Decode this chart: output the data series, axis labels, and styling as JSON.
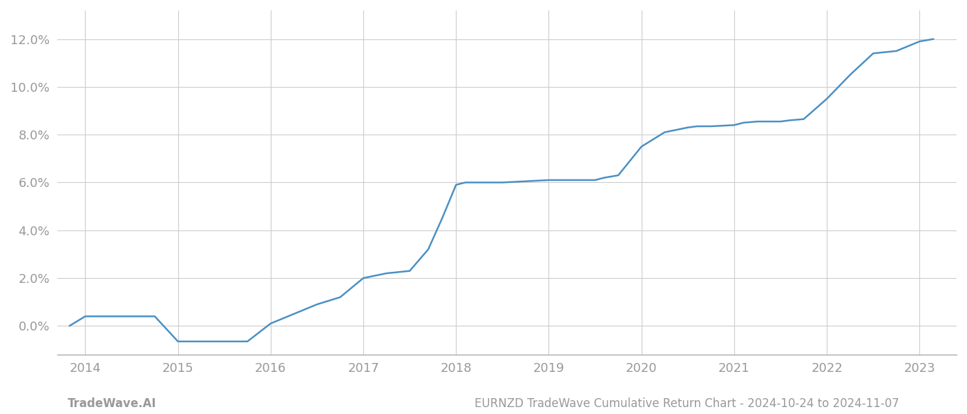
{
  "x_values": [
    2013.83,
    2014.0,
    2014.75,
    2015.0,
    2015.25,
    2015.5,
    2015.75,
    2016.0,
    2016.25,
    2016.5,
    2016.75,
    2017.0,
    2017.25,
    2017.5,
    2017.7,
    2017.85,
    2018.0,
    2018.1,
    2018.3,
    2018.5,
    2018.75,
    2019.0,
    2019.25,
    2019.5,
    2019.6,
    2019.75,
    2020.0,
    2020.25,
    2020.5,
    2020.6,
    2020.75,
    2021.0,
    2021.1,
    2021.25,
    2021.5,
    2021.6,
    2021.75,
    2022.0,
    2022.25,
    2022.5,
    2022.75,
    2023.0,
    2023.15
  ],
  "y_values": [
    0.0,
    0.4,
    0.4,
    -0.65,
    -0.65,
    -0.65,
    -0.65,
    0.1,
    0.5,
    0.9,
    1.2,
    2.0,
    2.2,
    2.3,
    3.2,
    4.5,
    5.9,
    6.0,
    6.0,
    6.0,
    6.05,
    6.1,
    6.1,
    6.1,
    6.2,
    6.3,
    7.5,
    8.1,
    8.3,
    8.35,
    8.35,
    8.4,
    8.5,
    8.55,
    8.55,
    8.6,
    8.65,
    9.5,
    10.5,
    11.4,
    11.5,
    11.9,
    12.0
  ],
  "line_color": "#4a90c4",
  "line_width": 1.8,
  "title": "EURNZD TradeWave Cumulative Return Chart - 2024-10-24 to 2024-11-07",
  "footer_left": "TradeWave.AI",
  "footer_right": "EURNZD TradeWave Cumulative Return Chart - 2024-10-24 to 2024-11-07",
  "xlim": [
    2013.7,
    2023.4
  ],
  "ylim": [
    -1.2,
    13.2
  ],
  "yticks": [
    0.0,
    2.0,
    4.0,
    6.0,
    8.0,
    10.0,
    12.0
  ],
  "xticks": [
    2014,
    2015,
    2016,
    2017,
    2018,
    2019,
    2020,
    2021,
    2022,
    2023
  ],
  "background_color": "#ffffff",
  "grid_color": "#cccccc",
  "tick_color": "#999999",
  "tick_fontsize": 13,
  "footer_fontsize": 12
}
